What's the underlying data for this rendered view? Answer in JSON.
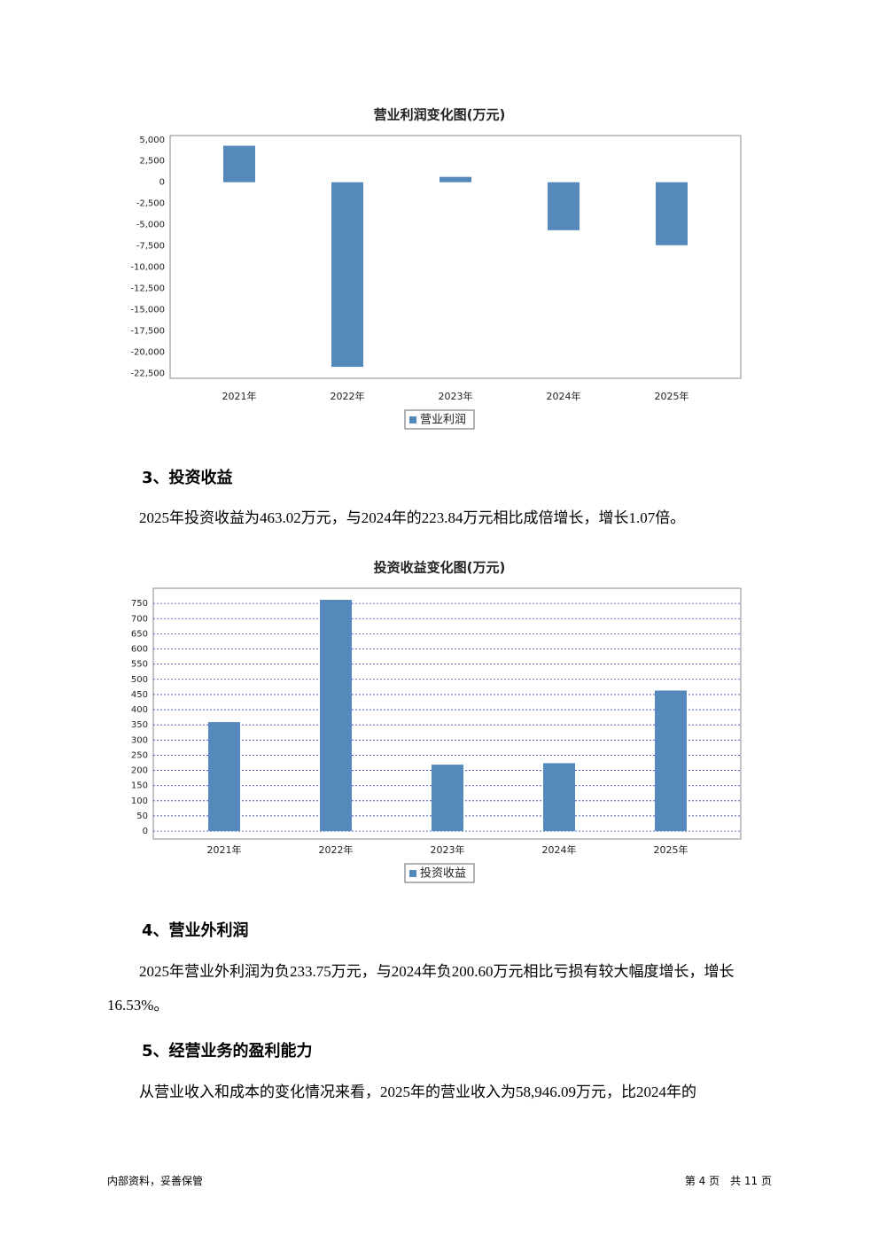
{
  "chart_data": [
    {
      "type": "bar",
      "title": "营业利润变化图(万元)",
      "categories": [
        "2021年",
        "2022年",
        "2023年",
        "2024年",
        "2025年"
      ],
      "series": [
        {
          "name": "营业利润",
          "color": "#5588bb",
          "values": [
            4300,
            -21750,
            630,
            -5650,
            -7420
          ]
        }
      ],
      "ylim": [
        -23100,
        5500
      ],
      "yticks": [
        {
          "value": 5000,
          "label": "5,000"
        },
        {
          "value": 2500,
          "label": "2,500"
        },
        0,
        {
          "value": -2500,
          "label": "-2,500"
        },
        {
          "value": -5000,
          "label": "-5,000"
        },
        {
          "value": -7500,
          "label": "-7,500"
        },
        {
          "value": -10000,
          "label": "-10,000"
        },
        {
          "value": -12500,
          "label": "-12,500"
        },
        {
          "value": -15000,
          "label": "-15,000"
        },
        {
          "value": -17500,
          "label": "-17,500"
        },
        {
          "value": -20000,
          "label": "-20,000"
        },
        {
          "value": -22500,
          "label": "-22,500"
        }
      ],
      "grid": false
    },
    {
      "type": "bar",
      "title": "投资收益变化图(万元)",
      "categories": [
        "2021年",
        "2022年",
        "2023年",
        "2024年",
        "2025年"
      ],
      "series": [
        {
          "name": "投资收益",
          "color": "#5588bb",
          "values": [
            359,
            762,
            219,
            223.84,
            463.02
          ]
        }
      ],
      "ylim": [
        -26,
        800
      ],
      "yticks": [
        0,
        50,
        100,
        150,
        200,
        250,
        300,
        350,
        400,
        450,
        500,
        550,
        600,
        650,
        700,
        750
      ],
      "grid": true
    }
  ],
  "sections": [
    {
      "heading": "3、投资收益",
      "paragraph": "2025年投资收益为463.02万元，与2024年的223.84万元相比成倍增长，增长1.07倍。"
    },
    {
      "heading": "4、营业外利润",
      "paragraph": "2025年营业外利润为负233.75万元，与2024年负200.60万元相比亏损有较大幅度增长，增长16.53%。"
    },
    {
      "heading": "5、经营业务的盈利能力",
      "paragraph": "从营业收入和成本的变化情况来看，2025年的营业收入为58,946.09万元，比2024年的"
    }
  ],
  "footer": {
    "left": "内部资料，妥善保管",
    "right": "第 4 页　共 11 页"
  }
}
